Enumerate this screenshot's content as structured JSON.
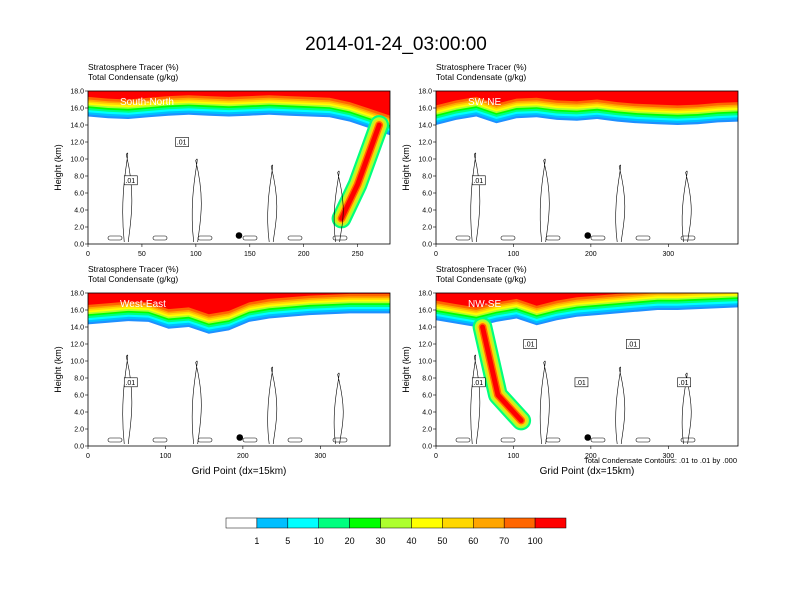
{
  "figure": {
    "title": "2014-01-24_03:00:00",
    "contour_note": "Total Condensate Contours: .01 to .01 by .000"
  },
  "colorbar": {
    "labels": [
      "1",
      "5",
      "10",
      "20",
      "30",
      "40",
      "50",
      "60",
      "70",
      "100"
    ],
    "colors": [
      "#ffffff",
      "#1e90ff",
      "#00bfff",
      "#00ffff",
      "#00ff7f",
      "#00ff00",
      "#adff2f",
      "#ffff00",
      "#ffd700",
      "#ffa500",
      "#ff6600",
      "#ff0000"
    ]
  },
  "chart_data": [
    {
      "type": "heatmap",
      "panel_label": "South-North",
      "title_line1": "Stratosphere Tracer   (%)",
      "title_line2": "Total Condensate   (g/kg)",
      "ylabel": "Height (km)",
      "xlabel": "",
      "xlim": [
        0,
        280
      ],
      "ylim": [
        0,
        18
      ],
      "xticks": [
        "0",
        "50",
        "100",
        "150",
        "200",
        "250"
      ],
      "yticks": [
        "0.0",
        "2.0",
        "4.0",
        "6.0",
        "8.0",
        "10.0",
        "12.0",
        "14.0",
        "16.0",
        "18.0"
      ],
      "contour_labels": [
        ".01",
        ".01"
      ],
      "marker": {
        "x": 140,
        "y": 1.0
      },
      "tracer_base_km": [
        15.0,
        14.8,
        14.7,
        14.9,
        15.1,
        15.2,
        15.1,
        15.0,
        15.1,
        15.2,
        15.1,
        15.0,
        14.9,
        14.4,
        13.6,
        12.8
      ],
      "tracer_column": {
        "x": [
          235,
          250,
          270
        ],
        "y": [
          3,
          7,
          14
        ]
      }
    },
    {
      "type": "heatmap",
      "panel_label": "SW-NE",
      "title_line1": "Stratosphere Tracer   (%)",
      "title_line2": "Total Condensate   (g/kg)",
      "ylabel": "Height (km)",
      "xlabel": "",
      "xlim": [
        0,
        390
      ],
      "ylim": [
        0,
        18
      ],
      "xticks": [
        "0",
        "100",
        "200",
        "300"
      ],
      "yticks": [
        "0.0",
        "2.0",
        "4.0",
        "6.0",
        "8.0",
        "10.0",
        "12.0",
        "14.0",
        "16.0",
        "18.0"
      ],
      "contour_labels": [
        ".01"
      ],
      "marker": {
        "x": 196,
        "y": 1.0
      },
      "tracer_base_km": [
        14.0,
        14.6,
        15.0,
        14.2,
        14.8,
        14.9,
        14.6,
        14.5,
        14.7,
        14.4,
        14.2,
        14.1,
        14.0,
        14.1,
        14.3,
        14.4
      ]
    },
    {
      "type": "heatmap",
      "panel_label": "West-East",
      "title_line1": "Stratosphere Tracer   (%)",
      "title_line2": "Total Condensate   (g/kg)",
      "ylabel": "Height (km)",
      "xlabel": "Grid Point (dx=15km)",
      "xlim": [
        0,
        390
      ],
      "ylim": [
        0,
        18
      ],
      "xticks": [
        "0",
        "100",
        "200",
        "300"
      ],
      "yticks": [
        "0.0",
        "2.0",
        "4.0",
        "6.0",
        "8.0",
        "10.0",
        "12.0",
        "14.0",
        "16.0",
        "18.0"
      ],
      "contour_labels": [
        ".01"
      ],
      "marker": {
        "x": 196,
        "y": 1.0
      },
      "tracer_base_km": [
        14.3,
        14.5,
        14.7,
        14.6,
        13.8,
        14.0,
        13.2,
        13.6,
        14.6,
        15.0,
        15.2,
        15.4,
        15.5,
        15.6,
        15.6,
        15.6
      ]
    },
    {
      "type": "heatmap",
      "panel_label": "NW-SE",
      "title_line1": "Stratosphere Tracer   (%)",
      "title_line2": "Total Condensate   (g/kg)",
      "ylabel": "Height (km)",
      "xlabel": "Grid Point (dx=15km)",
      "xlim": [
        0,
        390
      ],
      "ylim": [
        0,
        18
      ],
      "xticks": [
        "0",
        "100",
        "200",
        "300"
      ],
      "yticks": [
        "0.0",
        "2.0",
        "4.0",
        "6.0",
        "8.0",
        "10.0",
        "12.0",
        "14.0",
        "16.0",
        "18.0"
      ],
      "contour_labels": [
        ".01",
        ".01",
        ".01",
        ".01",
        ".01"
      ],
      "marker": {
        "x": 196,
        "y": 1.0
      },
      "tracer_base_km": [
        14.8,
        14.4,
        14.0,
        14.6,
        15.0,
        14.2,
        14.8,
        15.2,
        15.4,
        15.6,
        15.8,
        16.0,
        16.0,
        16.1,
        16.2,
        16.3
      ],
      "tracer_column": {
        "x": [
          60,
          80,
          110
        ],
        "y": [
          14,
          6,
          3
        ]
      }
    }
  ]
}
